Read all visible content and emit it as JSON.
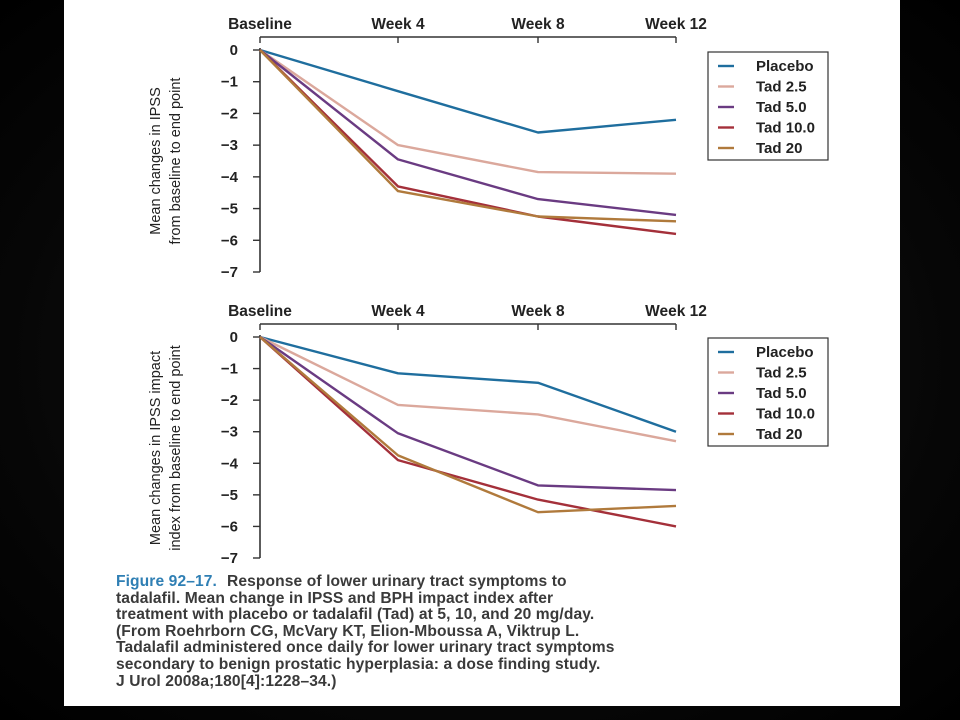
{
  "caption": {
    "figure_label": "Figure 92–17.",
    "lines": [
      "Response of lower urinary tract symptoms to",
      "tadalafil. Mean change in IPSS and BPH impact index after",
      "treatment with placebo or tadalafil (Tad) at 5, 10, and 20 mg/day.",
      "(From Roehrborn CG, McVary KT, Elion-Mboussa A, Viktrup L.",
      "Tadalafil administered once daily for lower urinary tract symptoms",
      "secondary to benign prostatic hyperplasia: a dose finding study.",
      "J Urol 2008a;180[4]:1228–34.)"
    ]
  },
  "colors": {
    "Placebo": "#1f6e9e",
    "Tad 2.5": "#dba89c",
    "Tad 5.0": "#6a3b82",
    "Tad 10.0": "#a4303a",
    "Tad 20": "#b07a3c"
  },
  "chart_data": [
    {
      "type": "line",
      "categories": [
        "Baseline",
        "Week 4",
        "Week 8",
        "Week 12"
      ],
      "ylabel": [
        "Mean changes in IPSS",
        "from baseline to end point"
      ],
      "ylim": [
        -7,
        0
      ],
      "yticks": [
        "0",
        "−1",
        "−2",
        "−3",
        "−4",
        "−5",
        "−6",
        "−7"
      ],
      "legend_position": "top-right",
      "grid": false,
      "series": [
        {
          "name": "Placebo",
          "values": [
            0,
            -1.3,
            -2.6,
            -2.2
          ]
        },
        {
          "name": "Tad 2.5",
          "values": [
            0,
            -3.0,
            -3.85,
            -3.9
          ]
        },
        {
          "name": "Tad 5.0",
          "values": [
            0,
            -3.45,
            -4.7,
            -5.2
          ]
        },
        {
          "name": "Tad 10.0",
          "values": [
            0,
            -4.3,
            -5.25,
            -5.8
          ]
        },
        {
          "name": "Tad 20",
          "values": [
            0,
            -4.45,
            -5.25,
            -5.4
          ]
        }
      ]
    },
    {
      "type": "line",
      "categories": [
        "Baseline",
        "Week 4",
        "Week 8",
        "Week 12"
      ],
      "ylabel": [
        "Mean changes in IPSS impact",
        "index from baseline to end point"
      ],
      "ylim": [
        -7,
        0
      ],
      "yticks": [
        "0",
        "−1",
        "−2",
        "−3",
        "−4",
        "−5",
        "−6",
        "−7"
      ],
      "legend_position": "top-right",
      "grid": false,
      "series": [
        {
          "name": "Placebo",
          "values": [
            0,
            -1.15,
            -1.45,
            -3.0
          ]
        },
        {
          "name": "Tad 2.5",
          "values": [
            0,
            -2.15,
            -2.45,
            -3.3
          ]
        },
        {
          "name": "Tad 5.0",
          "values": [
            0,
            -3.05,
            -4.7,
            -4.85
          ]
        },
        {
          "name": "Tad 10.0",
          "values": [
            0,
            -3.9,
            -5.15,
            -6.0
          ]
        },
        {
          "name": "Tad 20",
          "values": [
            0,
            -3.75,
            -5.55,
            -5.35
          ]
        }
      ]
    }
  ]
}
